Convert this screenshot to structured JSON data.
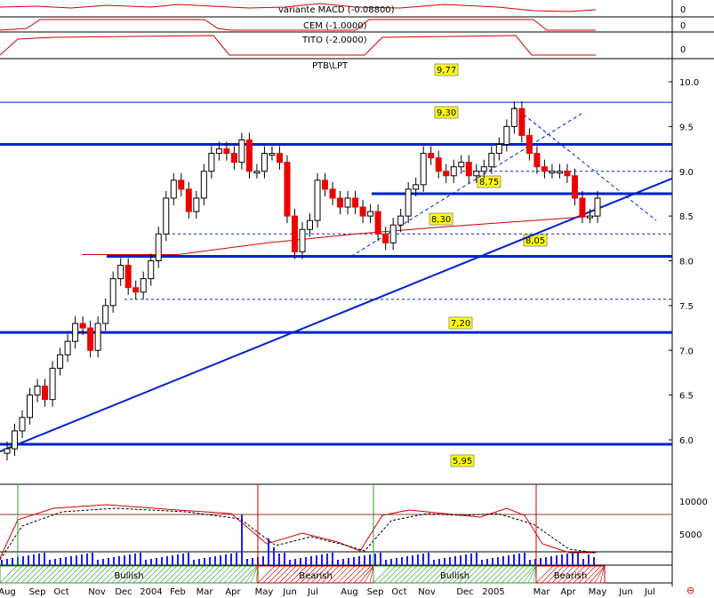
{
  "indicators": {
    "macd_label": "variante MACD (-0.08800)",
    "cem_label": "CEM (-1.0000)",
    "tito_label": "TITO (-2.0000)",
    "zero": "0"
  },
  "colors": {
    "line_red": "#d40000",
    "level_blue": "#0022cc",
    "label_yellow": "#ffff00",
    "bull_green": "#2e9e2e",
    "bear_red": "#cc0000",
    "volume_blue": "#1a1aff",
    "candle_red": "#ee0000"
  },
  "chart_data": {
    "type": "candlestick",
    "title": "PTB\\LPT",
    "y_ticks": [
      "10.0",
      "9.5",
      "9.0",
      "8.5",
      "8.0",
      "7.5",
      "7.0",
      "6.5",
      "6.0"
    ],
    "ylim": [
      5.8,
      10.2
    ],
    "x_ticks": [
      "Aug",
      "Sep",
      "Oct",
      "Nov",
      "Dec",
      "2004",
      "Feb",
      "Mar",
      "Apr",
      "May",
      "Jun",
      "Jul",
      "Aug",
      "Sep",
      "Oct",
      "Nov",
      "Dec",
      "2005",
      "Mar",
      "Apr",
      "May",
      "Jun",
      "Jul"
    ],
    "levels": [
      {
        "value": 9.3,
        "label": "9,30",
        "style": "solid"
      },
      {
        "value": 8.75,
        "label": "8,75",
        "style": "solid"
      },
      {
        "value": 8.05,
        "label": "8,05",
        "style": "solid"
      },
      {
        "value": 7.2,
        "label": "7,20",
        "style": "solid"
      },
      {
        "value": 5.95,
        "label": "5,95",
        "style": "solid"
      },
      {
        "value": 8.3,
        "label": "8,30",
        "style": "dashed"
      }
    ],
    "top_level_label": "9,77",
    "candles_close": [
      5.9,
      6.1,
      6.25,
      6.5,
      6.6,
      6.45,
      6.8,
      6.95,
      7.1,
      7.3,
      7.25,
      7.0,
      7.3,
      7.5,
      7.8,
      7.95,
      7.7,
      7.65,
      7.8,
      8.0,
      8.3,
      8.7,
      8.9,
      8.8,
      8.55,
      8.7,
      9.0,
      9.2,
      9.25,
      9.2,
      9.1,
      9.35,
      9.0,
      9.0,
      9.2,
      9.2,
      9.1,
      8.5,
      8.1,
      8.35,
      8.45,
      8.9,
      8.8,
      8.7,
      8.6,
      8.7,
      8.6,
      8.5,
      8.55,
      8.3,
      8.2,
      8.4,
      8.5,
      8.8,
      8.85,
      9.2,
      9.15,
      9.0,
      8.95,
      9.05,
      9.1,
      8.95,
      9.0,
      9.05,
      9.2,
      9.3,
      9.5,
      9.7,
      9.4,
      9.2,
      9.05,
      9.0,
      9.0,
      9.0,
      8.95,
      8.7,
      8.5,
      8.5,
      8.7
    ],
    "sentiment_bands": [
      {
        "label": "Bullish",
        "type": "bull"
      },
      {
        "label": "Bearish",
        "type": "bear"
      },
      {
        "label": "Bullish",
        "type": "bull"
      },
      {
        "label": "Bearish",
        "type": "bear"
      }
    ],
    "volume_ticks": [
      "10000",
      "5000"
    ]
  }
}
